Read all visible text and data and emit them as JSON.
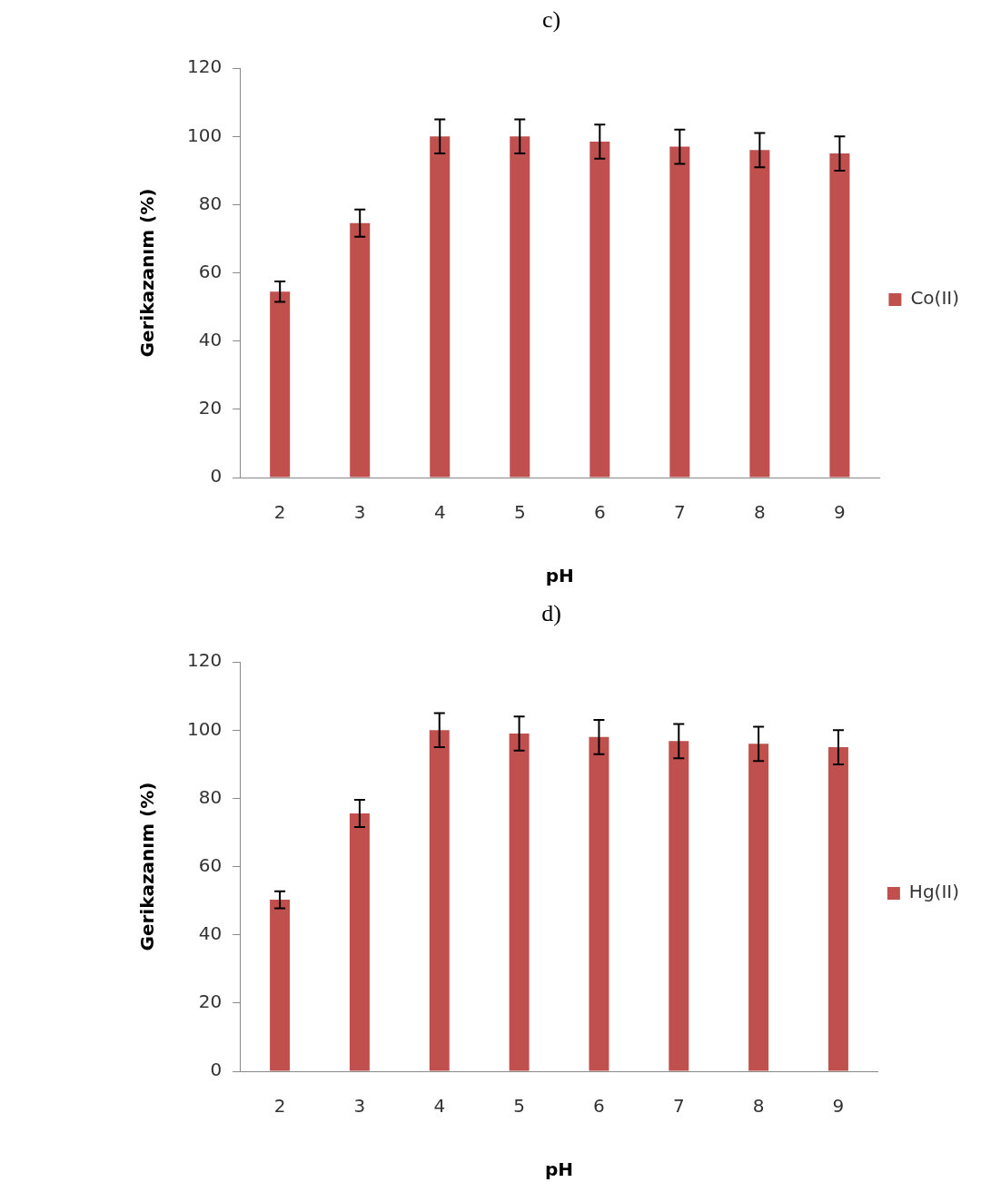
{
  "chart_data": [
    {
      "type": "bar",
      "title": "c)",
      "xlabel": "pH",
      "ylabel": "Gerikazanım (%)",
      "categories": [
        "2",
        "3",
        "4",
        "5",
        "6",
        "7",
        "8",
        "9"
      ],
      "series": [
        {
          "name": "Co(II)",
          "color": "#c0504d",
          "values": [
            54.5,
            74.6,
            100,
            100,
            98.5,
            97,
            96,
            95
          ],
          "errors": [
            3,
            4,
            5,
            5,
            5,
            5,
            5,
            5
          ]
        }
      ],
      "ylim": [
        0,
        120
      ],
      "yticks": [
        0,
        20,
        40,
        60,
        80,
        100,
        120
      ],
      "grid": false,
      "legend": "right"
    },
    {
      "type": "bar",
      "title": "d)",
      "xlabel": "pH",
      "ylabel": "Gerikazanım (%)",
      "categories": [
        "2",
        "3",
        "4",
        "5",
        "6",
        "7",
        "8",
        "9"
      ],
      "series": [
        {
          "name": "Hg(II)",
          "color": "#c0504d",
          "values": [
            50.3,
            75.6,
            100,
            99,
            98,
            96.8,
            96,
            95
          ],
          "errors": [
            2.5,
            4,
            5,
            5,
            5,
            5,
            5,
            5
          ]
        }
      ],
      "ylim": [
        0,
        120
      ],
      "yticks": [
        0,
        20,
        40,
        60,
        80,
        100,
        120
      ],
      "grid": false,
      "legend": "right"
    }
  ]
}
